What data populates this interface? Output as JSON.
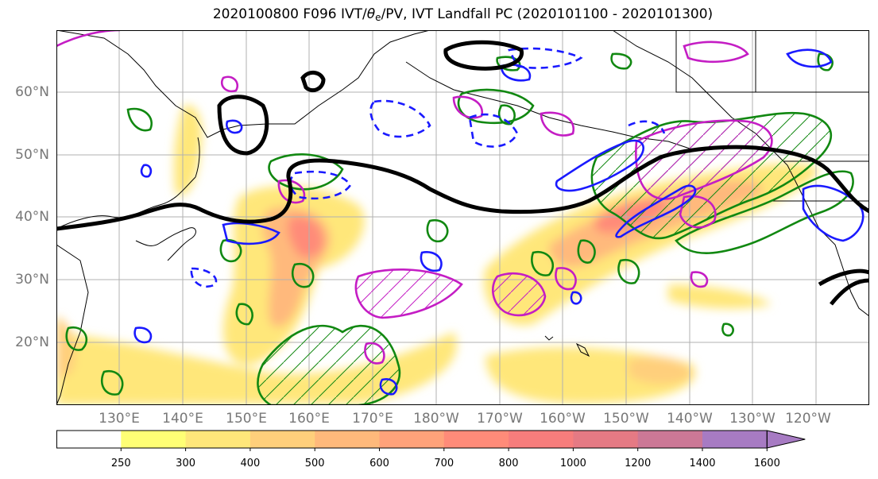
{
  "title": {
    "prefix": "2020100800 F096 IVT/",
    "theta": "θ",
    "theta_sub": "e",
    "suffix": "/PV, IVT Landfall PC (2020101100 - 2020101300)"
  },
  "lat_labels": [
    "60°N",
    "50°N",
    "40°N",
    "30°N",
    "20°N"
  ],
  "lon_labels": [
    "130°E",
    "140°E",
    "150°E",
    "160°E",
    "170°E",
    "180°W",
    "170°W",
    "160°W",
    "150°W",
    "140°W",
    "130°W",
    "120°W"
  ],
  "colorbar": {
    "ticks": [
      "250",
      "300",
      "400",
      "500",
      "600",
      "700",
      "800",
      "1000",
      "1200",
      "1400",
      "1600"
    ],
    "colors": [
      "#ffffff",
      "#ffff75",
      "#ffe77a",
      "#ffcf7b",
      "#ffb97b",
      "#ffa27a",
      "#ff8b79",
      "#f77d7c",
      "#e57a84",
      "#cc7896",
      "#a77bc3"
    ]
  },
  "colors": {
    "ivt_fill": "#ffdf6b",
    "ivt_core": "#ff8b79",
    "pv_contour": "#000000",
    "theta_e_positive": "#1a1aff",
    "landfall_pc": "#c41dc4",
    "green_contour": "#118811",
    "coastline": "#000000",
    "grid": "#b0b0b0"
  }
}
